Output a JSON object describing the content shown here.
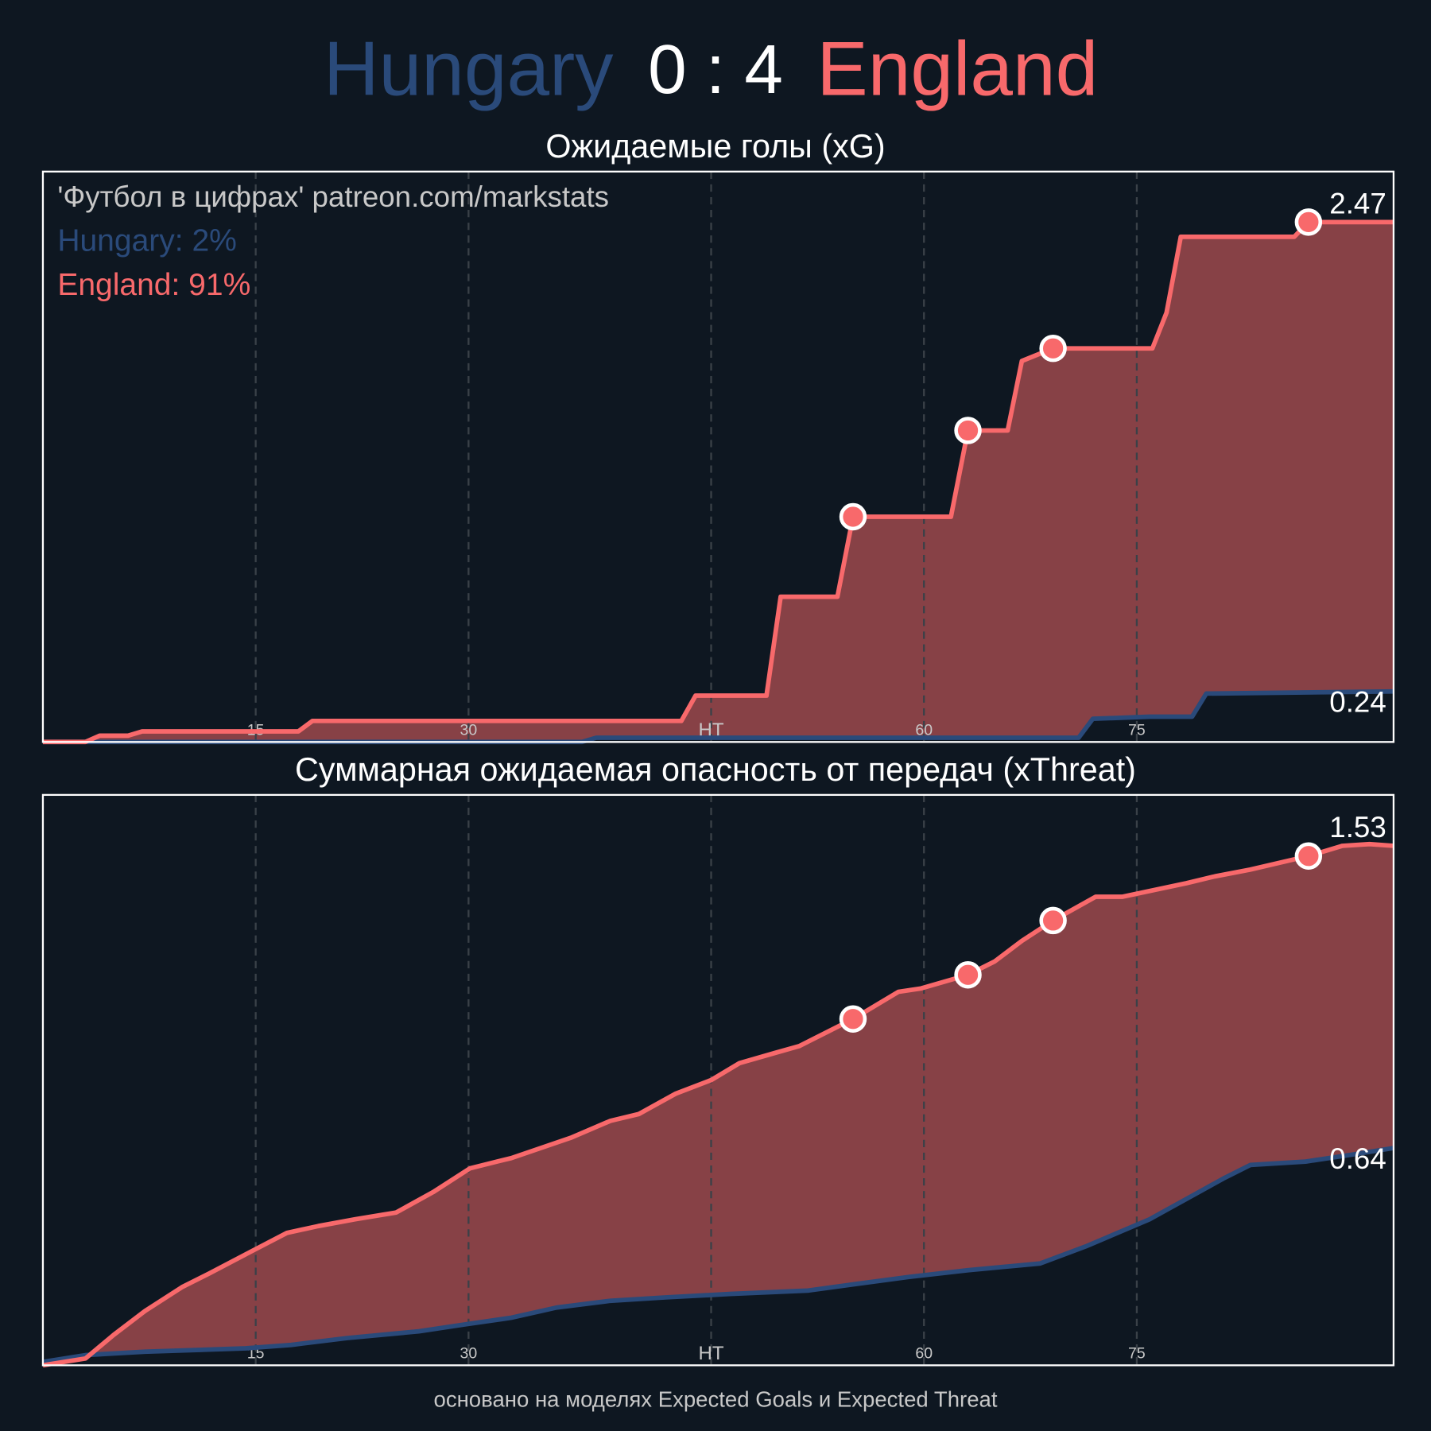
{
  "header": {
    "home": "Hungary",
    "score": "0 : 4",
    "away": "England"
  },
  "footer": "основано на моделях Expected Goals и Expected Threat",
  "chart_data": [
    {
      "type": "line",
      "title": "Ожидаемые голы (xG)",
      "annotation": "'Футбол в цифрах' patreon.com/markstats",
      "xlim": [
        0,
        95.2
      ],
      "ylim": [
        0,
        2.71
      ],
      "xticks": [
        15,
        30,
        {
          "value": 47.1,
          "label": "HT"
        },
        {
          "value": 62.1,
          "label": "60"
        },
        {
          "value": 77.1,
          "label": "75"
        }
      ],
      "grid": true,
      "fill_color": "#874146",
      "series": [
        {
          "label": "Hungary: 2%",
          "color": "#2a4a7a",
          "x": [
            0,
            38,
            39,
            73,
            74,
            78,
            81,
            82,
            95.2
          ],
          "values": [
            0,
            0,
            0.02,
            0.02,
            0.11,
            0.12,
            0.12,
            0.23,
            0.24
          ]
        },
        {
          "label": "England: 91%",
          "color": "#f8696b",
          "x": [
            0,
            3,
            4,
            6,
            7,
            18,
            19,
            45,
            46,
            51,
            52,
            56,
            57.1,
            64,
            65.2,
            68,
            69,
            71.2,
            78.2,
            79.2,
            80.2,
            88.2,
            89.2,
            95.2
          ],
          "values": [
            0,
            0,
            0.03,
            0.03,
            0.05,
            0.05,
            0.1,
            0.1,
            0.22,
            0.22,
            0.69,
            0.69,
            1.07,
            1.07,
            1.48,
            1.48,
            1.81,
            1.87,
            1.87,
            2.04,
            2.4,
            2.4,
            2.47,
            2.47
          ]
        }
      ],
      "goals": {
        "color": "#f8696b",
        "x": [
          57.1,
          65.2,
          71.2,
          89.2
        ],
        "values": [
          1.07,
          1.48,
          1.87,
          2.47
        ]
      }
    },
    {
      "type": "line",
      "title": "Суммарная ожидаемая опасность от передач (xThreat)",
      "xlim": [
        0,
        95.2
      ],
      "ylim": [
        0,
        1.68
      ],
      "xticks": [
        15,
        30,
        {
          "value": 47.1,
          "label": "HT"
        },
        {
          "value": 62.1,
          "label": "60"
        },
        {
          "value": 77.1,
          "label": "75"
        }
      ],
      "grid": true,
      "fill_color": "#874146",
      "series": [
        {
          "color": "#2a4a7a",
          "x": [
            0,
            3,
            7.2,
            14.3,
            17.5,
            21.4,
            26.5,
            29.7,
            33,
            36.2,
            40,
            43.9,
            48.4,
            53.9,
            57.4,
            61,
            65.2,
            70.3,
            73.5,
            78,
            80.6,
            83.2,
            85.1,
            89,
            92.2,
            95.2
          ],
          "values": [
            0.01,
            0.03,
            0.04,
            0.05,
            0.06,
            0.08,
            0.1,
            0.12,
            0.14,
            0.17,
            0.19,
            0.2,
            0.21,
            0.22,
            0.24,
            0.26,
            0.28,
            0.3,
            0.35,
            0.43,
            0.49,
            0.55,
            0.59,
            0.6,
            0.62,
            0.64
          ]
        },
        {
          "color": "#f8696b",
          "x": [
            0,
            3,
            5,
            7.2,
            9.8,
            11.7,
            14.9,
            17.2,
            19.4,
            22,
            24.9,
            27.5,
            30.1,
            32,
            33,
            37.2,
            40,
            42,
            44.6,
            47.1,
            49.1,
            51.6,
            53.3,
            55.2,
            57.1,
            60.3,
            61.9,
            65.2,
            67.1,
            69,
            71.2,
            74.2,
            76.1,
            80.6,
            82.6,
            85.1,
            89.2,
            91.6,
            93.5,
            95.2
          ],
          "values": [
            0,
            0.02,
            0.09,
            0.16,
            0.23,
            0.27,
            0.34,
            0.39,
            0.41,
            0.43,
            0.45,
            0.51,
            0.58,
            0.6,
            0.61,
            0.67,
            0.72,
            0.74,
            0.8,
            0.84,
            0.89,
            0.92,
            0.94,
            0.98,
            1.02,
            1.1,
            1.11,
            1.15,
            1.19,
            1.25,
            1.31,
            1.38,
            1.38,
            1.42,
            1.44,
            1.46,
            1.5,
            1.53,
            1.535,
            1.53
          ]
        }
      ],
      "goals": {
        "color": "#f8696b",
        "x": [
          57.1,
          65.2,
          71.2,
          89.2
        ],
        "values": [
          1.02,
          1.15,
          1.31,
          1.5
        ]
      }
    }
  ]
}
